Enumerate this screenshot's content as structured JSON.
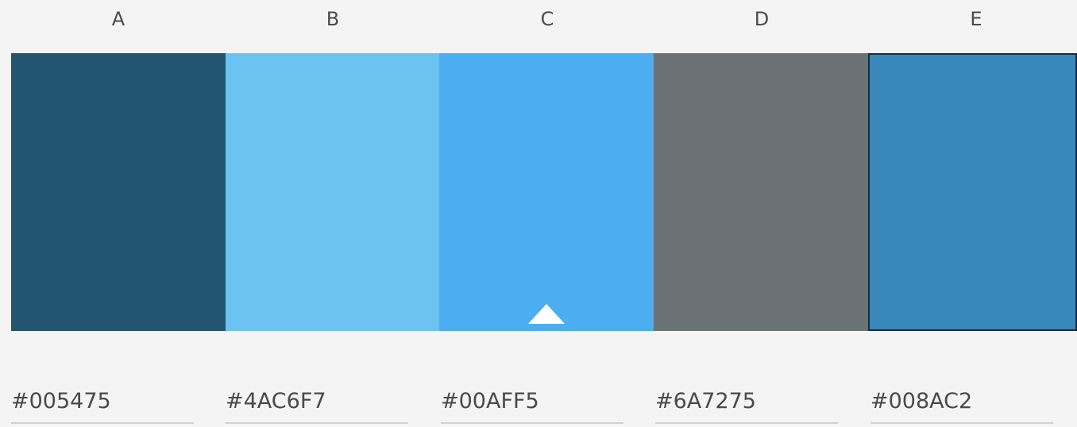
{
  "palette": [
    {
      "label": "A",
      "color": "#235571",
      "hex": "#005475"
    },
    {
      "label": "B",
      "color": "#6cc3f2",
      "hex": "#4AC6F7"
    },
    {
      "label": "C",
      "color": "#4caef0",
      "hex": "#00AFF5"
    },
    {
      "label": "D",
      "color": "#6a7275",
      "hex": "#6A7275"
    },
    {
      "label": "E",
      "color": "#3888bb",
      "hex": "#008AC2"
    }
  ],
  "base_color_index": 2,
  "selected_index": 4
}
